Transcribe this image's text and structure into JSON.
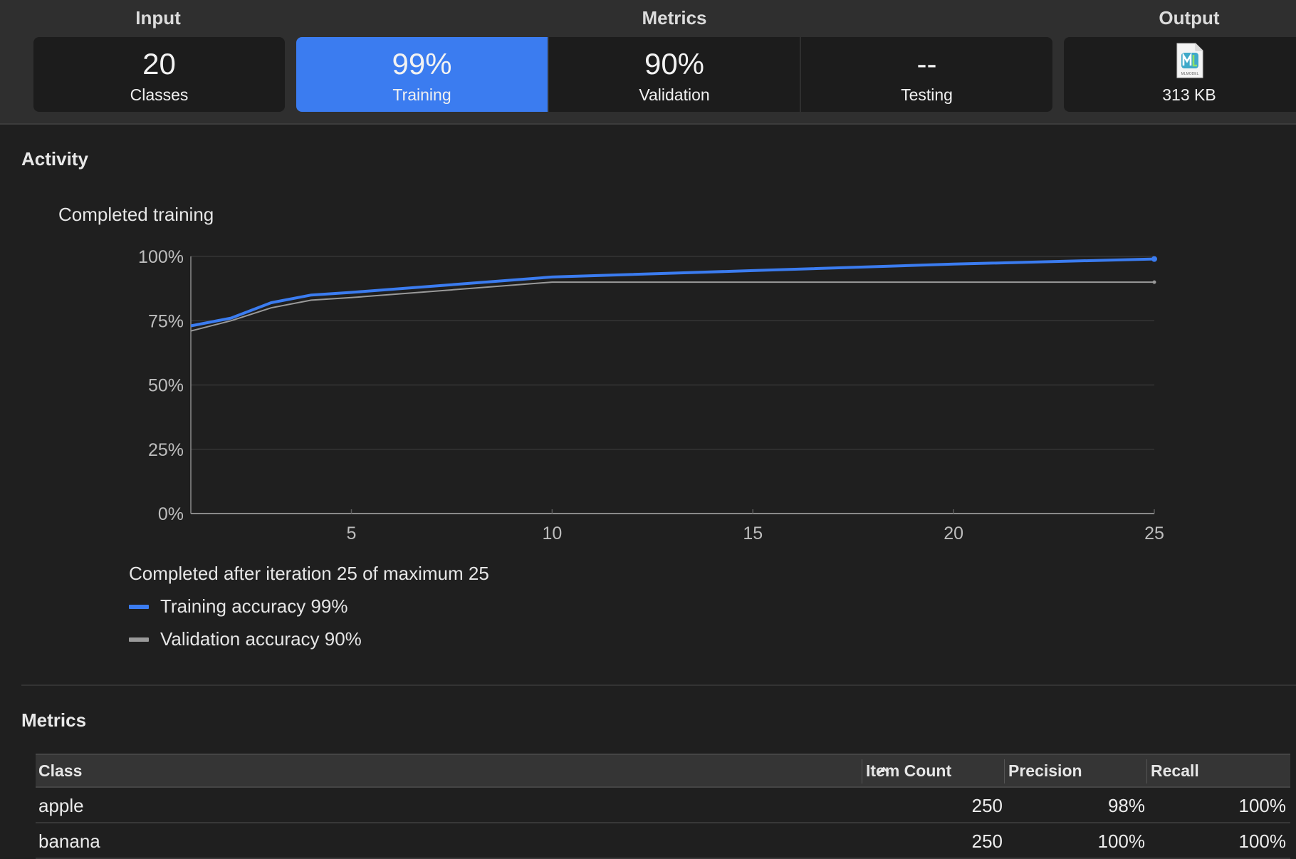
{
  "header": {
    "input_label": "Input",
    "metrics_label": "Metrics",
    "output_label": "Output",
    "input_card": {
      "value": "20",
      "caption": "Classes"
    },
    "metric_cards": [
      {
        "value": "99%",
        "caption": "Training",
        "selected": true
      },
      {
        "value": "90%",
        "caption": "Validation",
        "selected": false
      },
      {
        "value": "--",
        "caption": "Testing",
        "selected": false
      }
    ],
    "output_card": {
      "icon": "mlmodel-file-icon",
      "caption": "313 KB",
      "icon_text": "MLMODEL"
    }
  },
  "activity": {
    "heading": "Activity",
    "status": "Completed training",
    "summary": "Completed after iteration 25 of maximum 25",
    "legend": [
      {
        "label": "Training accuracy 99%",
        "color": "#3b7cf0"
      },
      {
        "label": "Validation accuracy 90%",
        "color": "#9a9a9a"
      }
    ]
  },
  "chart_data": {
    "type": "line",
    "xlim": [
      1,
      25
    ],
    "ylim": [
      0,
      100
    ],
    "x_ticks": [
      5,
      10,
      15,
      20,
      25
    ],
    "y_ticks": [
      0,
      25,
      50,
      75,
      100
    ],
    "y_tick_labels": [
      "0%",
      "25%",
      "50%",
      "75%",
      "100%"
    ],
    "grid": true,
    "series": [
      {
        "name": "Training accuracy 99%",
        "color": "#3b7cf0",
        "x": [
          1,
          2,
          3,
          4,
          5,
          10,
          15,
          20,
          25
        ],
        "y": [
          73,
          76,
          82,
          85,
          86,
          92,
          94.5,
          97,
          99
        ]
      },
      {
        "name": "Validation accuracy 90%",
        "color": "#9a9a9a",
        "x": [
          1,
          2,
          3,
          4,
          5,
          10,
          25
        ],
        "y": [
          71,
          75,
          80,
          83,
          84,
          90,
          90
        ]
      }
    ]
  },
  "metrics": {
    "heading": "Metrics",
    "columns": [
      "Class",
      "Item Count",
      "Precision",
      "Recall"
    ],
    "rows": [
      [
        "apple",
        "250",
        "98%",
        "100%"
      ],
      [
        "banana",
        "250",
        "100%",
        "100%"
      ]
    ]
  }
}
